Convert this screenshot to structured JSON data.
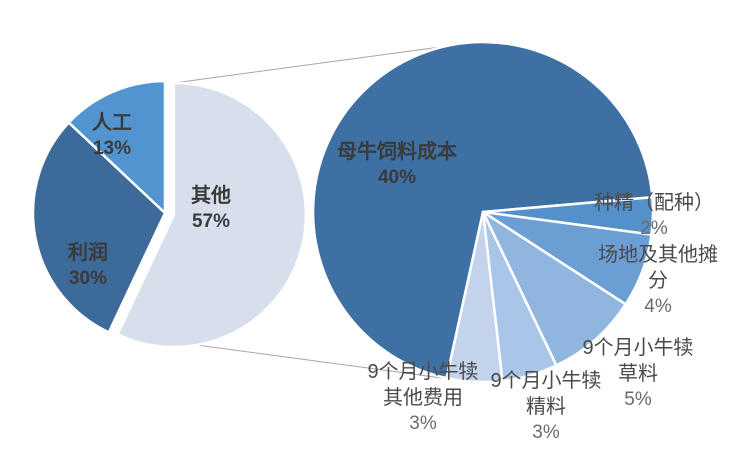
{
  "chart_data": {
    "type": "pie",
    "variant": "pie-of-pie",
    "unit": "%",
    "legend": "none",
    "grid": false,
    "primary": {
      "slices": [
        {
          "key": "qita",
          "label": "其他",
          "display_lines": [
            "其他"
          ],
          "value": 57,
          "pct_label": "57%",
          "color": "#D8DFEC",
          "exploded": true
        },
        {
          "key": "lirun",
          "label": "利润",
          "display_lines": [
            "利润"
          ],
          "value": 30,
          "pct_label": "30%",
          "color": "#3C6A99",
          "exploded": false
        },
        {
          "key": "rengong",
          "label": "人工",
          "display_lines": [
            "人工"
          ],
          "value": 13,
          "pct_label": "13%",
          "color": "#5194D0",
          "exploded": false
        }
      ]
    },
    "secondary": {
      "parent_label": "其他",
      "parent_value": 57,
      "slices": [
        {
          "key": "muniu",
          "label": "母牛饲料成本",
          "display_lines": [
            "母牛饲料成本"
          ],
          "value": 40,
          "pct_label": "40%",
          "color": "#3E70A3",
          "exploded": false
        },
        {
          "key": "zhongjing",
          "label": "种精（配种）",
          "display_lines": [
            "种精（配种）"
          ],
          "value": 2,
          "pct_label": "2%",
          "color": "#5490C9",
          "exploded": false
        },
        {
          "key": "changdi",
          "label": "场地及其他摊分",
          "display_lines": [
            "场地及其他摊",
            "分"
          ],
          "value": 4,
          "pct_label": "4%",
          "color": "#6B9FD4",
          "exploded": false
        },
        {
          "key": "caoliao",
          "label": "9个月小牛犊草料",
          "display_lines": [
            "9个月小牛犊",
            "草料"
          ],
          "value": 5,
          "pct_label": "5%",
          "color": "#90B6E0",
          "exploded": false
        },
        {
          "key": "jingliao",
          "label": "9个月小牛犊精料",
          "display_lines": [
            "9个月小牛犊",
            "精料"
          ],
          "value": 3,
          "pct_label": "3%",
          "color": "#A9C5E8",
          "exploded": false
        },
        {
          "key": "qitafeiyong",
          "label": "9个月小牛犊其他费用",
          "display_lines": [
            "9个月小牛犊",
            "其他费用"
          ],
          "value": 3,
          "pct_label": "3%",
          "color": "#C3D3EC",
          "exploded": false
        }
      ]
    }
  },
  "style": {
    "background": "#FFFFFF",
    "label_color": "#3F3F3F",
    "connector_color": "#A6A6A6",
    "slice_border_color": "#FFFFFF"
  }
}
